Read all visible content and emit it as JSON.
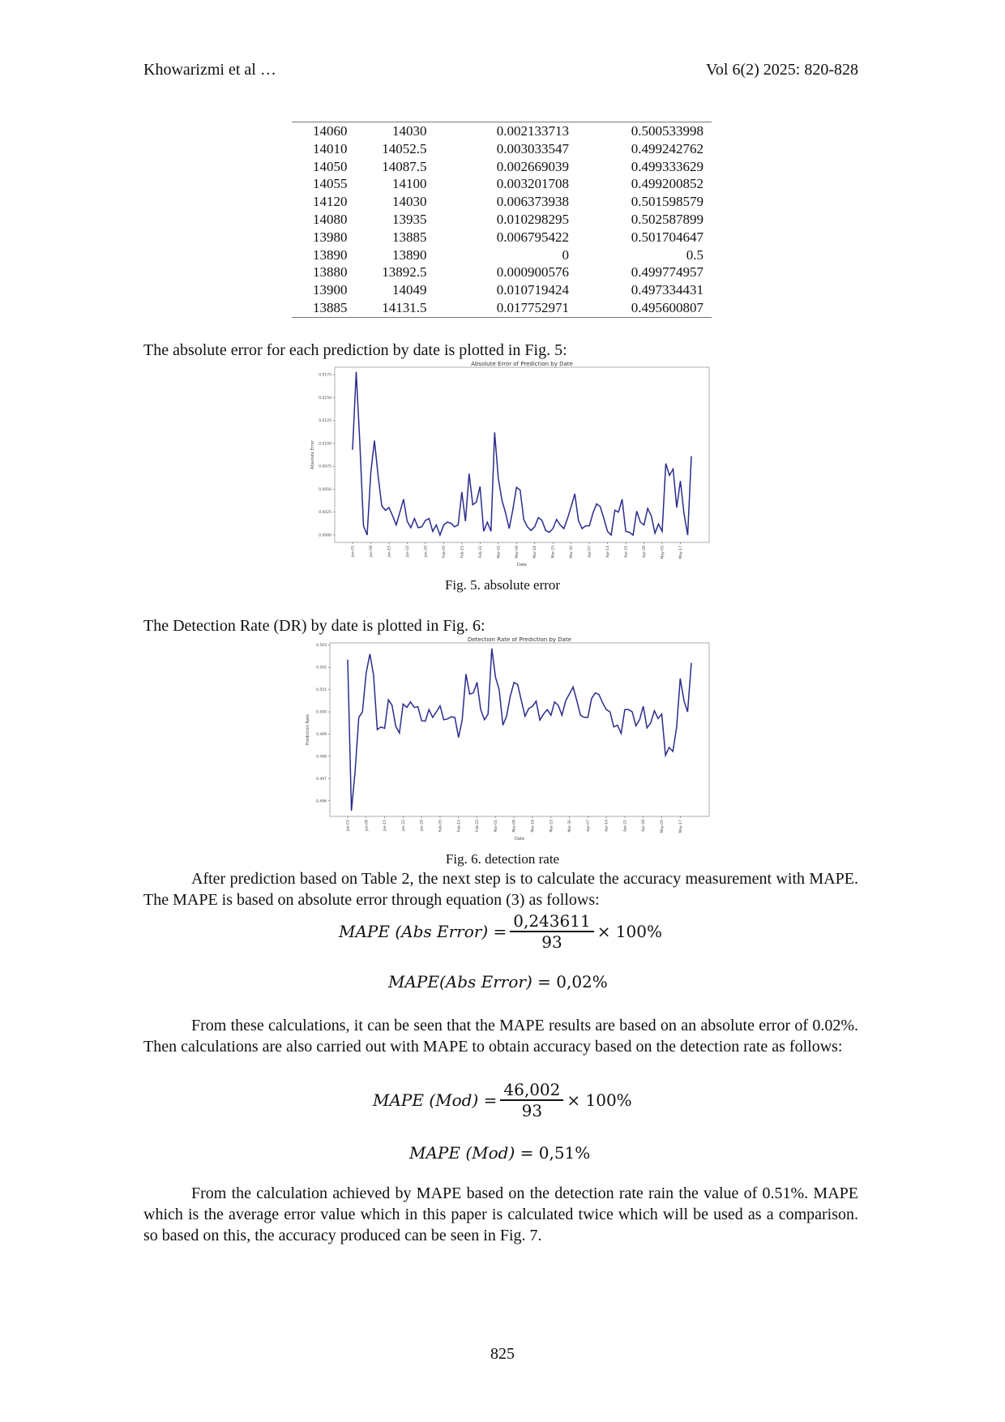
{
  "header": {
    "left": "Khowarizmi et al …",
    "right": "Vol 6(2) 2025: 820-828"
  },
  "table": {
    "rows": [
      [
        "14060",
        "14030",
        "0.002133713",
        "0.500533998"
      ],
      [
        "14010",
        "14052.5",
        "0.003033547",
        "0.499242762"
      ],
      [
        "14050",
        "14087.5",
        "0.002669039",
        "0.499333629"
      ],
      [
        "14055",
        "14100",
        "0.003201708",
        "0.499200852"
      ],
      [
        "14120",
        "14030",
        "0.006373938",
        "0.501598579"
      ],
      [
        "14080",
        "13935",
        "0.010298295",
        "0.502587899"
      ],
      [
        "13980",
        "13885",
        "0.006795422",
        "0.501704647"
      ],
      [
        "13890",
        "13890",
        "0",
        "0.5"
      ],
      [
        "13880",
        "13892.5",
        "0.000900576",
        "0.499774957"
      ],
      [
        "13900",
        "14049",
        "0.010719424",
        "0.497334431"
      ],
      [
        "13885",
        "14131.5",
        "0.017752971",
        "0.495600807"
      ]
    ]
  },
  "text": {
    "intro_fig5": "The absolute error for each prediction by date is plotted in Fig. 5:",
    "fig5_caption": "Fig. 5. absolute error",
    "intro_fig6": "The Detection Rate (DR) by date is plotted in Fig. 6:",
    "fig6_caption": "Fig. 6. detection rate",
    "para1": "After prediction based on Table 2, the next step is to calculate the accuracy measurement with MAPE. The MAPE is based on absolute error through equation (3) as follows:",
    "para2": "From these calculations, it can be seen that the MAPE results are based on an absolute error of 0.02%. Then calculations are also carried out with MAPE to obtain accuracy based on the detection rate as follows:",
    "para3": "From the calculation achieved by MAPE based on the detection rate rain the value of 0.51%. MAPE which is the average error value which in this paper is calculated twice which will be used as a comparison. so based on this, the accuracy produced can be seen in Fig. 7.",
    "page_number": "825"
  },
  "equations": {
    "eq1": {
      "lhs": "MAPE (Abs Error) =",
      "num": "0,243611",
      "den": "93",
      "rhs": "× 100%"
    },
    "eq2": {
      "lhs": "MAPE(Abs Error) =",
      "rhs": "0,02%"
    },
    "eq3": {
      "lhs": "MAPE (Mod) =",
      "num": "46,002",
      "den": "93",
      "rhs": "× 100%"
    },
    "eq4": {
      "lhs": "MAPE (Mod) =",
      "rhs": "0,51%"
    }
  },
  "chart_data": [
    {
      "type": "line",
      "title": "Absolute Error of Prediction by Date",
      "xlabel": "Date",
      "ylabel": "Absolute Error",
      "line_color": "#2b2b8c",
      "grid": false,
      "ylim": [
        -0.0008,
        0.0183
      ],
      "yticks": [
        "0.0000",
        "0.0025",
        "0.0050",
        "0.0075",
        "0.0100",
        "0.0125",
        "0.0150",
        "0.0175"
      ],
      "xtick_labels": [
        "Jan-01",
        "Jan-08",
        "Jan-15",
        "Jan-22",
        "Jan-29",
        "Feb-05",
        "Feb-15",
        "Feb-22",
        "Mar-01",
        "Mar-08",
        "Mar-16",
        "Mar-23",
        "Mar-30",
        "Apr-07",
        "Apr-14",
        "Apr-21",
        "Apr-28",
        "May-05",
        "May-17"
      ],
      "values": [
        0.0093,
        0.0178,
        0.01,
        0.001,
        0.0,
        0.0068,
        0.0103,
        0.0065,
        0.0032,
        0.0027,
        0.003,
        0.0021,
        0.0011,
        0.0025,
        0.0039,
        0.0015,
        0.0008,
        0.0018,
        0.0008,
        0.0009,
        0.0016,
        0.0018,
        0.0004,
        0.0011,
        0.0,
        0.0011,
        0.0014,
        0.0013,
        0.0009,
        0.0011,
        0.0047,
        0.0015,
        0.0067,
        0.0033,
        0.0036,
        0.0053,
        0.0004,
        0.0014,
        0.0004,
        0.0112,
        0.0062,
        0.0038,
        0.0024,
        0.0007,
        0.0028,
        0.0052,
        0.0049,
        0.0017,
        0.0009,
        0.0005,
        0.0009,
        0.0019,
        0.0016,
        0.0005,
        0.0003,
        0.0007,
        0.0017,
        0.0011,
        0.0007,
        0.0018,
        0.0031,
        0.0045,
        0.0016,
        0.0007,
        0.001,
        0.001,
        0.0024,
        0.0034,
        0.0031,
        0.0018,
        0.0004,
        0.0,
        0.0027,
        0.0025,
        0.0039,
        0.0004,
        0.0003,
        0.0,
        0.0026,
        0.0014,
        0.0011,
        0.0029,
        0.0021,
        0.0002,
        0.0012,
        0.0004,
        0.0078,
        0.0065,
        0.0072,
        0.003,
        0.0059,
        0.0023,
        0.0,
        0.0086
      ]
    },
    {
      "type": "line",
      "title": "Detection Rate of Prediction by Date",
      "xlabel": "Date",
      "ylabel": "Prediction Rate",
      "line_color": "#2b2b8c",
      "grid": false,
      "ylim": [
        0.4953,
        0.5031
      ],
      "yticks": [
        "0.496",
        "0.497",
        "0.498",
        "0.499",
        "0.500",
        "0.501",
        "0.502",
        "0.503"
      ],
      "xtick_labels": [
        "Jan-01",
        "Jan-08",
        "Jan-15",
        "Jan-22",
        "Jan-29",
        "Feb-05",
        "Feb-15",
        "Feb-22",
        "Mar-01",
        "Mar-08",
        "Mar-16",
        "Mar-23",
        "Mar-30",
        "Apr-07",
        "Apr-14",
        "Apr-21",
        "Apr-28",
        "May-05",
        "May-17"
      ],
      "values": [
        0.50235,
        0.49555,
        0.4973,
        0.49975,
        0.5,
        0.50175,
        0.5026,
        0.50165,
        0.4992,
        0.49932,
        0.49926,
        0.50054,
        0.5003,
        0.49935,
        0.49905,
        0.50035,
        0.5002,
        0.50045,
        0.5002,
        0.50023,
        0.4996,
        0.49958,
        0.5001,
        0.49975,
        0.5,
        0.50027,
        0.49965,
        0.49968,
        0.49978,
        0.49975,
        0.49885,
        0.49965,
        0.5017,
        0.5008,
        0.50085,
        0.50133,
        0.5001,
        0.49965,
        0.4999,
        0.50285,
        0.50155,
        0.501,
        0.4994,
        0.4998,
        0.5007,
        0.50132,
        0.50123,
        0.5005,
        0.4998,
        0.50015,
        0.50025,
        0.50048,
        0.49963,
        0.4999,
        0.5001,
        0.49985,
        0.50045,
        0.50028,
        0.49985,
        0.5005,
        0.5008,
        0.50112,
        0.5005,
        0.49985,
        0.49975,
        0.49975,
        0.5006,
        0.50085,
        0.50078,
        0.5004,
        0.5001,
        0.5,
        0.49932,
        0.4994,
        0.49903,
        0.5001,
        0.5001,
        0.5,
        0.49937,
        0.49965,
        0.50025,
        0.49928,
        0.4995,
        0.50005,
        0.4997,
        0.4999,
        0.49805,
        0.4984,
        0.49822,
        0.4993,
        0.5015,
        0.5005,
        0.5,
        0.5022
      ]
    }
  ]
}
